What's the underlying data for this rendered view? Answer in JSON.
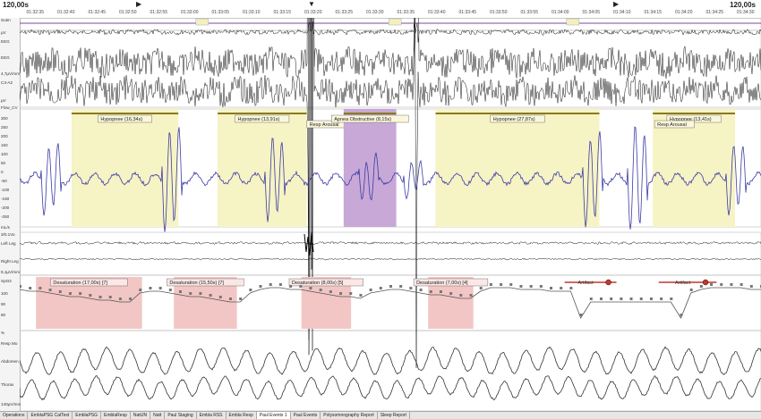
{
  "timebar": {
    "scale_left": "120,00s",
    "scale_right": "120,00s",
    "ticks": [
      "01:32:35",
      "01:32:40",
      "01:32:45",
      "01:32:50",
      "01:32:55",
      "01:33:00",
      "01:33:05",
      "01:33:10",
      "01:33:15",
      "01:33:20",
      "01:33:25",
      "01:33:30",
      "01:33:35",
      "01:33:40",
      "01:33:45",
      "01:33:50",
      "01:33:55",
      "01:34:00",
      "01:34:05",
      "01:34:10",
      "01:34:15",
      "01:34:20",
      "01:34:25",
      "01:34:30"
    ]
  },
  "channel_labels": [
    "Sutm",
    "µV",
    "EEG",
    "EEG",
    "4,7µV/mm",
    "C3-A2",
    "µV",
    "Flow_CV",
    "300",
    "250",
    "200",
    "150",
    "100",
    "50",
    "0",
    "-50",
    "-100",
    "-150",
    "-200",
    "-250",
    "mL/s",
    "3/0.1Vo",
    "Left Leg",
    "Right Leg",
    "8,1µV/mm",
    "SpO2",
    "100",
    "90",
    "80",
    "%",
    "Resp Mo",
    "Abdomen",
    "Thorax",
    "140µV/mm"
  ],
  "events": [
    {
      "label": "Hypopnee (16,34s)",
      "start": 0.07,
      "end": 0.214
    },
    {
      "label": "Hypopnee (13,91s)",
      "start": 0.267,
      "end": 0.387
    },
    {
      "label": "Resp Arousal",
      "start": 0.385,
      "end": 0.437
    },
    {
      "label": "Apnea Obstructive (8,15s)",
      "start": 0.437,
      "end": 0.508
    },
    {
      "label": "Hypopnee (27,87s)",
      "start": 0.561,
      "end": 0.782
    },
    {
      "label": "Hypopnee (13,41s)",
      "start": 0.854,
      "end": 0.965
    },
    {
      "label": "Resp Arousal",
      "start": 0.854,
      "end": 0.918
    }
  ],
  "desaturations": [
    {
      "label": "Desaturation (17,00s) [7]",
      "start": 0.022,
      "end": 0.165
    },
    {
      "label": "Desaturation (15,50s) [7]",
      "start": 0.208,
      "end": 0.293
    },
    {
      "label": "Desaturation (8,00s) [5]",
      "start": 0.38,
      "end": 0.447
    },
    {
      "label": "Desaturation (7,00s) [4]",
      "start": 0.551,
      "end": 0.612
    }
  ],
  "artifacts": [
    {
      "label": "Artifact",
      "start": 0.735,
      "end": 0.805
    },
    {
      "label": "Artifact",
      "start": 0.862,
      "end": 0.94
    }
  ],
  "spo2_values": [
    96,
    95,
    95,
    94,
    93,
    92,
    92,
    91,
    90,
    90,
    89,
    89,
    94,
    95,
    95,
    94,
    93,
    92,
    92,
    91,
    90,
    89,
    89,
    94,
    96,
    97,
    97,
    96,
    96,
    95,
    94,
    93,
    92,
    92,
    91,
    94,
    95,
    96,
    96,
    95,
    94,
    93,
    93,
    92,
    91,
    91,
    95,
    97,
    97,
    97,
    96,
    96,
    96,
    95,
    95,
    95,
    80,
    89,
    89,
    89,
    89,
    89,
    89,
    89,
    89,
    89,
    80,
    94,
    96,
    97,
    97,
    97,
    97,
    96,
    96
  ],
  "tabs": [
    "Operations",
    "EmblaPSG CalTest",
    "EmblaPSG",
    "EmblaResp",
    "NattJN",
    "Natt",
    "Paul Staging",
    "Embla RSS",
    "Embla Resp",
    "Paul Events 1",
    "Paul Events",
    "Polysomnography Report",
    "Sleep Report"
  ],
  "active_tab": 9,
  "colors": {
    "hypopnea": "#f6f3c4",
    "apnea": "#c8a8d6",
    "desat": "#f2c6c4",
    "flow": "#3b3ba6",
    "artifact": "#c0392b",
    "bar": "#8a7a1f"
  }
}
